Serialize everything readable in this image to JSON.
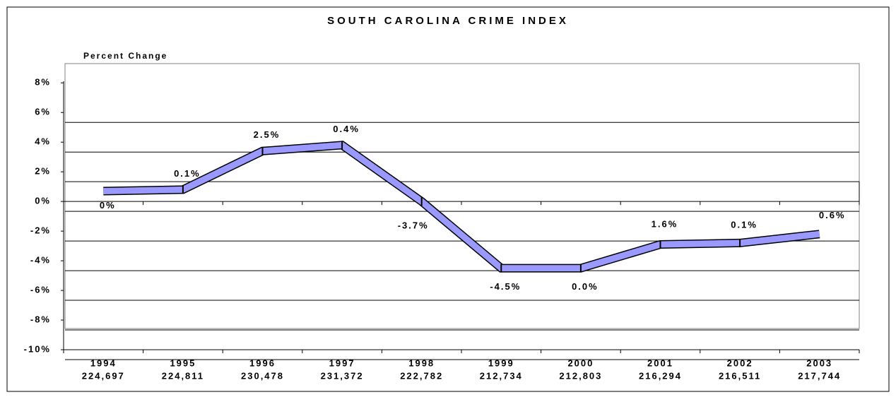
{
  "chart_data": {
    "type": "line",
    "title": "SOUTH CAROLINA CRIME INDEX",
    "y_axis_label": "Percent Change",
    "categories": [
      "1994",
      "1995",
      "1996",
      "1997",
      "1998",
      "1999",
      "2000",
      "2001",
      "2002",
      "2003"
    ],
    "crime_counts": [
      "224,697",
      "224,811",
      "230,478",
      "231,372",
      "222,782",
      "212,734",
      "212,803",
      "216,294",
      "216,511",
      "217,744"
    ],
    "values": [
      0.7,
      0.8,
      3.4,
      3.8,
      0,
      -4.5,
      -4.5,
      -2.9,
      -2.8,
      -2.2
    ],
    "annotations": [
      "0%",
      "0.1%",
      "2.5%",
      "0.4%",
      "-3.7%",
      "-4.5%",
      "0.0%",
      "1.6%",
      "0.1%",
      "0.6%"
    ],
    "color": "#9999ff",
    "ylim": [
      -10,
      9.3
    ],
    "yticks": [
      {
        "value": 8,
        "label": "8%"
      },
      {
        "value": 6,
        "label": "6%"
      },
      {
        "value": 4,
        "label": "4%"
      },
      {
        "value": 2,
        "label": "2%"
      },
      {
        "value": 0,
        "label": "0%"
      },
      {
        "value": -2,
        "label": "-2%"
      },
      {
        "value": -4,
        "label": "-4%"
      },
      {
        "value": -6,
        "label": "-6%"
      },
      {
        "value": -8,
        "label": "-8%"
      },
      {
        "value": -10,
        "label": "-10%"
      }
    ],
    "grid": true
  }
}
